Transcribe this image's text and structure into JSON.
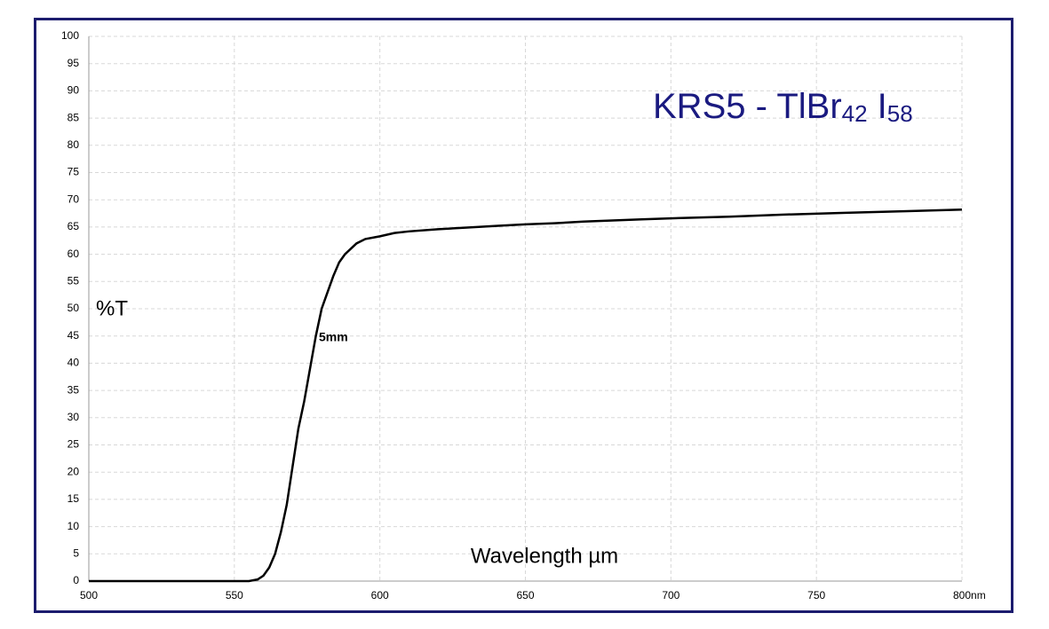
{
  "chart_data": {
    "type": "line",
    "title": [
      "KRS5 - TlBr",
      "42",
      " I",
      "58"
    ],
    "ylabel": "%T",
    "xlabel": "Wavelength µm",
    "series": [
      {
        "name": "5mm",
        "color": "#000000",
        "x": [
          500,
          550,
          555,
          558,
          560,
          562,
          564,
          566,
          568,
          570,
          572,
          574,
          576,
          578,
          580,
          582,
          584,
          586,
          588,
          590,
          592,
          595,
          600,
          605,
          610,
          620,
          630,
          640,
          650,
          660,
          670,
          680,
          690,
          700,
          720,
          740,
          760,
          780,
          800
        ],
        "values": [
          0,
          0,
          0,
          0.3,
          1,
          2.5,
          5,
          9,
          14,
          21,
          28,
          33,
          39,
          45,
          50,
          53,
          56,
          58.5,
          60,
          61,
          62,
          62.8,
          63.3,
          63.9,
          64.2,
          64.6,
          64.9,
          65.2,
          65.5,
          65.7,
          66,
          66.2,
          66.4,
          66.6,
          66.9,
          67.3,
          67.6,
          67.9,
          68.2
        ]
      }
    ],
    "xlim": [
      500,
      800
    ],
    "xticks": [
      500,
      550,
      600,
      650,
      700,
      750,
      {
        "value": 800,
        "label": "800nm"
      }
    ],
    "ylim": [
      0,
      100
    ],
    "yticks": [
      0,
      5,
      10,
      15,
      20,
      25,
      30,
      35,
      40,
      45,
      50,
      55,
      60,
      65,
      70,
      75,
      80,
      85,
      90,
      95,
      100
    ],
    "grid": true
  }
}
